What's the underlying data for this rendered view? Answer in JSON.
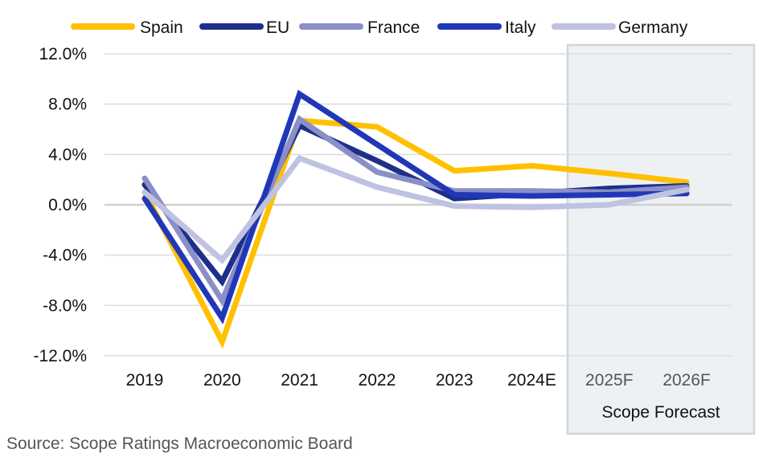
{
  "chart_data": {
    "type": "line",
    "categories": [
      "2019",
      "2020",
      "2021",
      "2022",
      "2023",
      "2024E",
      "2025F",
      "2026F"
    ],
    "series": [
      {
        "name": "Spain",
        "color": "#FFC000",
        "values": [
          1.0,
          -10.9,
          6.7,
          6.2,
          2.7,
          3.1,
          2.5,
          1.8
        ]
      },
      {
        "name": "EU",
        "color": "#1E2F8A",
        "values": [
          1.6,
          -6.1,
          6.3,
          3.5,
          0.5,
          0.9,
          1.3,
          1.5
        ]
      },
      {
        "name": "France",
        "color": "#8A8FC8",
        "values": [
          2.1,
          -7.6,
          6.8,
          2.6,
          1.1,
          1.1,
          1.0,
          1.4
        ]
      },
      {
        "name": "Italy",
        "color": "#2038B8",
        "values": [
          0.5,
          -9.0,
          8.8,
          4.8,
          0.8,
          0.7,
          0.8,
          0.9
        ]
      },
      {
        "name": "Germany",
        "color": "#BFC2E0",
        "values": [
          1.0,
          -4.4,
          3.7,
          1.4,
          -0.1,
          -0.2,
          0.0,
          1.2
        ]
      }
    ],
    "y_ticks": [
      "12.0%",
      "8.0%",
      "4.0%",
      "0.0%",
      "-4.0%",
      "-8.0%",
      "-12.0%"
    ],
    "ylim": [
      -12,
      12
    ],
    "grid": true,
    "legend_position": "top",
    "forecast_label": "Scope Forecast",
    "forecast_categories": [
      "2025F",
      "2026F"
    ],
    "source": "Source: Scope Ratings Macroeconomic Board"
  }
}
